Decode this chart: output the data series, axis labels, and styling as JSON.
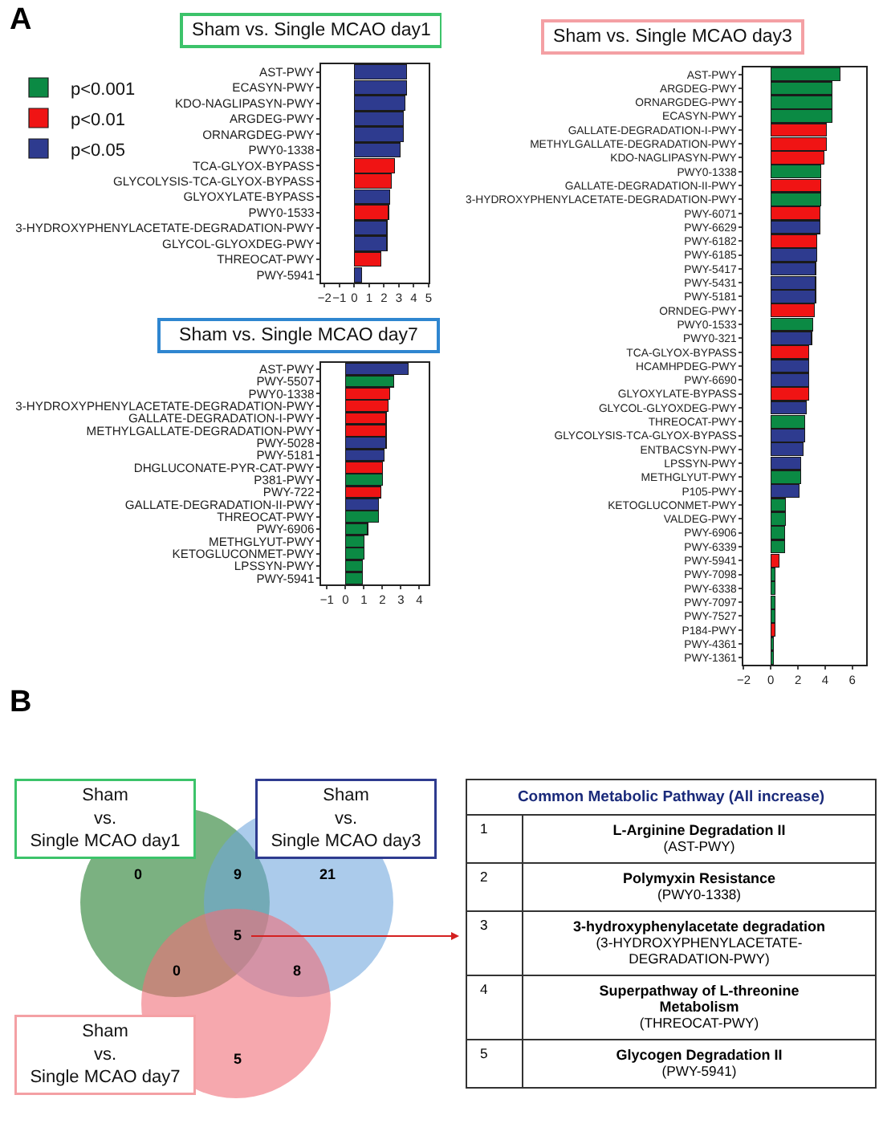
{
  "chart_data": [
    {
      "type": "bar",
      "orientation": "horizontal",
      "stacked": true,
      "title": "Sham vs. Single MCAO day1",
      "annotations": [
        "A"
      ],
      "legend": "top left",
      "categories": [
        "AST-PWY",
        "ECASYN-PWY",
        "KDO-NAGLIPASYN-PWY",
        "ARGDEG-PWY",
        "ORNARGDEG-PWY",
        "PWY0-1338",
        "TCA-GLYOX-BYPASS",
        "GLYCOLYSIS-TCA-GLYOX-BYPASS",
        "GLYOXYLATE-BYPASS",
        "PWY0-1533",
        "3-HYDROXYPHENYLACETATE-DEGRADATION-PWY",
        "GLYCOL-GLYOXDEG-PWY",
        "THREOCAT-PWY",
        "PWY-5941"
      ],
      "series": [
        {
          "name": "p<0.001",
          "color": "#0b8a44",
          "values": [
            null,
            null,
            null,
            null,
            null,
            null,
            null,
            null,
            null,
            null,
            null,
            null,
            null,
            null
          ]
        },
        {
          "name": "p<0.01",
          "color": "#f01414",
          "values": [
            null,
            null,
            null,
            null,
            null,
            null,
            2.7,
            2.5,
            null,
            2.3,
            null,
            null,
            1.8,
            null
          ]
        },
        {
          "name": "p<0.05",
          "color": "#2e3b8f",
          "values": [
            3.5,
            3.5,
            3.4,
            3.3,
            3.3,
            3.1,
            null,
            null,
            2.4,
            null,
            2.2,
            2.2,
            null,
            0.5
          ]
        }
      ],
      "xlim": [
        -2.2,
        5
      ],
      "xticks": [
        -2,
        -1,
        0,
        1,
        2,
        3,
        4,
        5
      ]
    },
    {
      "type": "bar",
      "orientation": "horizontal",
      "stacked": true,
      "title": "Sham vs. Single MCAO day7",
      "categories": [
        "AST-PWY",
        "PWY-5507",
        "PWY0-1338",
        "3-HYDROXYPHENYLACETATE-DEGRADATION-PWY",
        "GALLATE-DEGRADATION-I-PWY",
        "METHYLGALLATE-DEGRADATION-PWY",
        "PWY-5028",
        "PWY-5181",
        "DHGLUCONATE-PYR-CAT-PWY",
        "P381-PWY",
        "PWY-722",
        "GALLATE-DEGRADATION-II-PWY",
        "THREOCAT-PWY",
        "PWY-6906",
        "METHGLYUT-PWY",
        "KETOGLUCONMET-PWY",
        "LPSSYN-PWY",
        "PWY-5941"
      ],
      "series": [
        {
          "color": "#0b8a44",
          "values": [
            null,
            2.6,
            null,
            null,
            null,
            null,
            null,
            null,
            null,
            2.0,
            null,
            null,
            1.8,
            1.2,
            1.0,
            1.0,
            0.9,
            0.9
          ]
        },
        {
          "color": "#f01414",
          "values": [
            null,
            null,
            2.4,
            2.3,
            2.2,
            2.2,
            null,
            null,
            2.0,
            null,
            1.9,
            null,
            null,
            null,
            null,
            null,
            null,
            null
          ]
        },
        {
          "color": "#2e3b8f",
          "values": [
            3.4,
            null,
            null,
            null,
            null,
            null,
            2.2,
            2.1,
            null,
            null,
            null,
            1.8,
            null,
            null,
            null,
            null,
            null,
            null
          ]
        }
      ],
      "xlim": [
        -1.3,
        4.5
      ],
      "xticks": [
        -1,
        0,
        1,
        2,
        3,
        4
      ]
    },
    {
      "type": "bar",
      "orientation": "horizontal",
      "stacked": true,
      "title": "Sham vs. Single MCAO day3",
      "categories": [
        "AST-PWY",
        "ARGDEG-PWY",
        "ORNARGDEG-PWY",
        "ECASYN-PWY",
        "GALLATE-DEGRADATION-I-PWY",
        "METHYLGALLATE-DEGRADATION-PWY",
        "KDO-NAGLIPASYN-PWY",
        "PWY0-1338",
        "GALLATE-DEGRADATION-II-PWY",
        "3-HYDROXYPHENYLACETATE-DEGRADATION-PWY",
        "PWY-6071",
        "PWY-6629",
        "PWY-6182",
        "PWY-6185",
        "PWY-5417",
        "PWY-5431",
        "PWY-5181",
        "ORNDEG-PWY",
        "PWY0-1533",
        "PWY0-321",
        "TCA-GLYOX-BYPASS",
        "HCAMHPDEG-PWY",
        "PWY-6690",
        "GLYOXYLATE-BYPASS",
        "GLYCOL-GLYOXDEG-PWY",
        "THREOCAT-PWY",
        "GLYCOLYSIS-TCA-GLYOX-BYPASS",
        "ENTBACSYN-PWY",
        "LPSSYN-PWY",
        "METHGLYUT-PWY",
        "P105-PWY",
        "KETOGLUCONMET-PWY",
        "VALDEG-PWY",
        "PWY-6906",
        "PWY-6339",
        "PWY-5941",
        "PWY-7098",
        "PWY-6338",
        "PWY-7097",
        "PWY-7527",
        "P184-PWY",
        "PWY-4361",
        "PWY-1361"
      ],
      "series": [
        {
          "color": "#0b8a44",
          "values": [
            5.1,
            4.5,
            4.5,
            4.5,
            null,
            null,
            null,
            3.7,
            null,
            3.7,
            null,
            null,
            null,
            null,
            null,
            null,
            null,
            null,
            3.1,
            null,
            null,
            null,
            null,
            null,
            null,
            2.5,
            null,
            null,
            null,
            2.2,
            null,
            1.1,
            1.1,
            1.0,
            1.0,
            null,
            0.3,
            0.3,
            0.3,
            0.3,
            null,
            0.2,
            0.2
          ]
        },
        {
          "color": "#f01414",
          "values": [
            null,
            null,
            null,
            null,
            4.1,
            4.1,
            3.9,
            null,
            3.7,
            null,
            3.6,
            null,
            3.4,
            null,
            null,
            null,
            null,
            3.2,
            null,
            null,
            2.8,
            null,
            null,
            2.8,
            null,
            null,
            null,
            null,
            null,
            null,
            null,
            null,
            null,
            null,
            null,
            0.6,
            null,
            null,
            null,
            null,
            0.3,
            null,
            null
          ]
        },
        {
          "color": "#2e3b8f",
          "values": [
            null,
            null,
            null,
            null,
            null,
            null,
            null,
            null,
            null,
            null,
            null,
            3.6,
            null,
            3.4,
            3.3,
            3.3,
            3.3,
            null,
            null,
            3.0,
            null,
            2.8,
            2.8,
            null,
            2.6,
            null,
            2.5,
            2.4,
            2.2,
            null,
            2.1,
            null,
            null,
            null,
            null,
            null,
            null,
            null,
            null,
            null,
            null,
            null,
            null
          ]
        }
      ],
      "xlim": [
        -2,
        7
      ],
      "xticks": [
        -2,
        0,
        2,
        4,
        6
      ]
    },
    {
      "type": "other",
      "annotations": [
        "B",
        "Sham\nvs.\nSingle MCAO day1",
        "Sham\nvs.\nSingle MCAO day3",
        "Sham\nvs.\nSingle MCAO day7"
      ],
      "categories": [
        null,
        null,
        null,
        null,
        null,
        null,
        null
      ],
      "values": [
        0,
        9,
        21,
        5,
        0,
        8,
        5
      ],
      "data_labels": true
    },
    {
      "type": "other",
      "title": "Common Metabolic Pathway (All increase)",
      "annotations": [
        "1",
        "L-Arginine Degradation II",
        "(AST-PWY)",
        "2",
        "Polymyxin Resistance",
        "(PWY0-1338)",
        "3",
        "3-hydroxyphenylacetate degradation",
        "(3-HYDROXYPHENYLACETATE-DEGRADATION-PWY)",
        "4",
        "Superpathway of L-threonine Metabolism",
        "(THREOCAT-PWY)",
        "5",
        "Glycogen Degradation II",
        "(PWY-5941)"
      ]
    }
  ]
}
